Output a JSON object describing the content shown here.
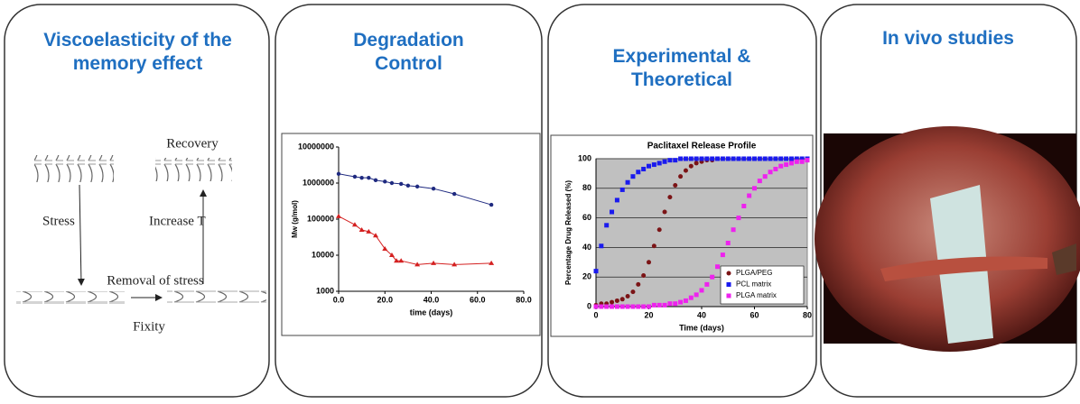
{
  "panels": [
    {
      "title": "Viscoelasticity of the memory effect",
      "labels": [
        "Recovery",
        "Stress",
        "Increase T",
        "Removal of stress",
        "Fixity"
      ]
    },
    {
      "title": "Degradation Control",
      "chart": {
        "type": "line",
        "x_label": "time (days)",
        "y_label": "Mw (g/mol)",
        "log_y": true,
        "xlim": [
          0,
          80
        ],
        "xticks": [
          {
            "value": 0,
            "label": "0.0"
          },
          {
            "value": 20,
            "label": "20.0"
          },
          {
            "value": 40,
            "label": "40.0"
          },
          {
            "value": 60,
            "label": "60.0"
          },
          {
            "value": 80,
            "label": "80.0"
          }
        ],
        "ylim": [
          1000,
          10000000
        ],
        "yticks": [
          1000,
          10000,
          100000,
          1000000,
          10000000
        ],
        "series": [
          {
            "color": "#1f2a80",
            "x": [
              0,
              7,
              10,
              13,
              16,
              20,
              23,
              27,
              30,
              34,
              41,
              50,
              66
            ],
            "values": [
              1800000,
              1500000,
              1400000,
              1400000,
              1200000,
              1100000,
              1000000,
              950000,
              850000,
              800000,
              700000,
              500000,
              250000
            ]
          },
          {
            "color": "#d42020",
            "x": [
              0,
              7,
              10,
              13,
              16,
              20,
              23,
              25,
              27,
              34,
              41,
              50,
              66
            ],
            "values": [
              120000,
              70000,
              50000,
              45000,
              35000,
              15000,
              10000,
              7000,
              7000,
              5500,
              6000,
              5500,
              6000
            ]
          }
        ]
      }
    },
    {
      "title": "Experimental & Theoretical",
      "chart": {
        "type": "scatter",
        "title": "Paclitaxel Release Profile",
        "x_label": "Time (days)",
        "y_label": "Percentage Drug Released (%)",
        "xlim": [
          0,
          80
        ],
        "xticks": [
          0,
          20,
          40,
          60,
          80
        ],
        "ylim": [
          0,
          100
        ],
        "yticks": [
          0,
          20,
          40,
          60,
          80,
          100
        ],
        "grid": true,
        "legend": "bottom-right",
        "x": [
          0,
          2,
          4,
          6,
          8,
          10,
          12,
          14,
          16,
          18,
          20,
          22,
          24,
          26,
          28,
          30,
          32,
          34,
          36,
          38,
          40,
          42,
          44,
          46,
          48,
          50,
          52,
          54,
          56,
          58,
          60,
          62,
          64,
          66,
          68,
          70,
          72,
          74,
          76,
          78,
          80
        ],
        "series": [
          {
            "name": "PLGA/PEG",
            "color": "#7b1416",
            "marker": "circle",
            "values": [
              1,
              2,
              2,
              3,
              4,
              5,
              7,
              10,
              15,
              21,
              30,
              41,
              52,
              64,
              74,
              82,
              88,
              92,
              95,
              97,
              98,
              99,
              99,
              100,
              100,
              100,
              100,
              100,
              100,
              100,
              100,
              100,
              100,
              100,
              100,
              100,
              100,
              100,
              100,
              100,
              100
            ]
          },
          {
            "name": "PCL matrix",
            "color": "#1a1aee",
            "marker": "square",
            "values": [
              24,
              41,
              55,
              64,
              72,
              79,
              84,
              88,
              91,
              93,
              95,
              96,
              97,
              98,
              99,
              99,
              100,
              100,
              100,
              100,
              100,
              100,
              100,
              100,
              100,
              100,
              100,
              100,
              100,
              100,
              100,
              100,
              100,
              100,
              100,
              100,
              100,
              100,
              100,
              100,
              100
            ]
          },
          {
            "name": "PLGA matrix",
            "color": "#ee22ee",
            "marker": "square",
            "values": [
              0,
              0,
              0,
              0,
              0,
              0,
              0,
              0,
              0,
              0,
              0,
              1,
              1,
              1,
              2,
              2,
              3,
              4,
              6,
              8,
              11,
              15,
              20,
              27,
              35,
              43,
              52,
              60,
              68,
              75,
              80,
              85,
              88,
              91,
              93,
              95,
              96,
              97,
              98,
              98,
              99
            ]
          }
        ]
      }
    },
    {
      "title": "In vivo studies"
    }
  ]
}
